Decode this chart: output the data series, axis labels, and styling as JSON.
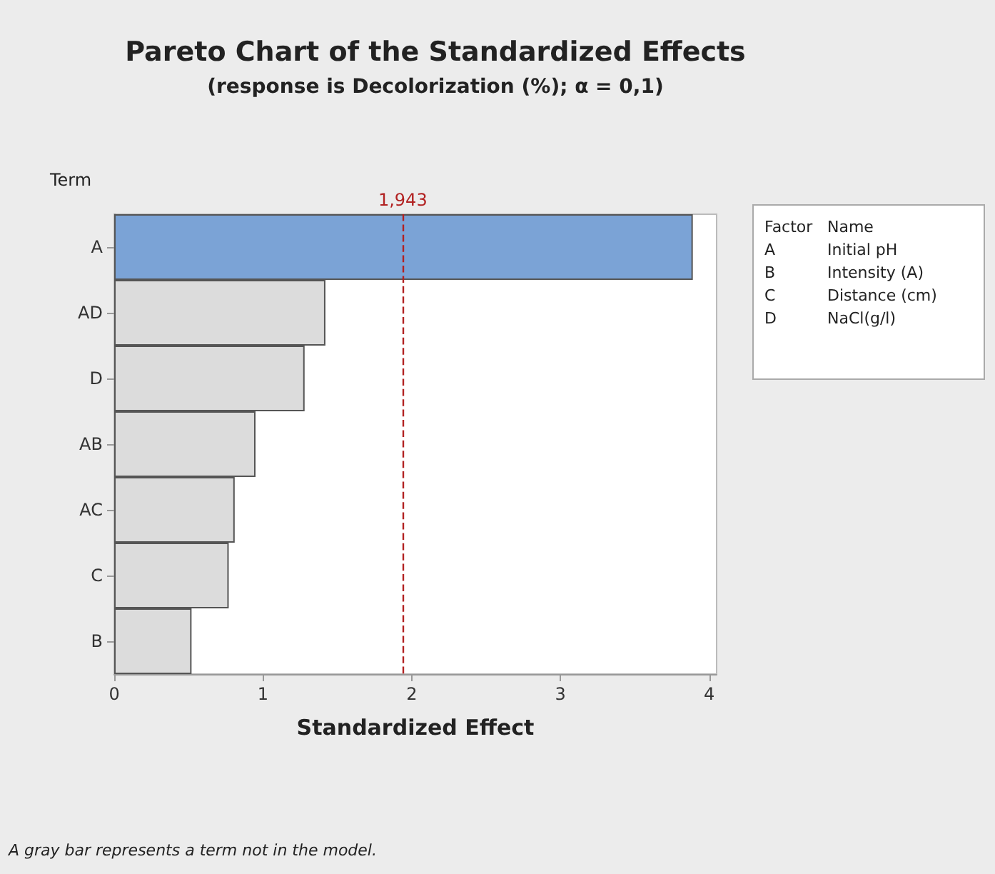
{
  "chart_data": {
    "type": "bar",
    "orientation": "horizontal",
    "title": "Pareto Chart of the Standardized Effects",
    "subtitle": "(response is Decolorization (%); α = 0,1)",
    "xlabel": "Standardized Effect",
    "ylabel": "Term",
    "categories": [
      "A",
      "AD",
      "D",
      "AB",
      "AC",
      "C",
      "B"
    ],
    "values": [
      3.89,
      1.42,
      1.28,
      0.95,
      0.81,
      0.77,
      0.52
    ],
    "colors": [
      "#7ba3d6",
      "#dcdcdc",
      "#dcdcdc",
      "#dcdcdc",
      "#dcdcdc",
      "#dcdcdc",
      "#dcdcdc"
    ],
    "xlim": [
      0,
      4.05
    ],
    "xticks": [
      0,
      1,
      2,
      3,
      4
    ],
    "ref_lines": [
      {
        "axis": "x",
        "value": 1.943,
        "label": "1,943",
        "color": "#b22222",
        "line_style": "dashed"
      }
    ],
    "annotations": [
      "Factor",
      "Name",
      "A",
      "Initial pH",
      "B",
      "Intensity (A)",
      "C",
      "Distance (cm)",
      "D",
      "NaCl(g/l)",
      "A gray bar represents a term not in the model."
    ],
    "grid": false
  }
}
